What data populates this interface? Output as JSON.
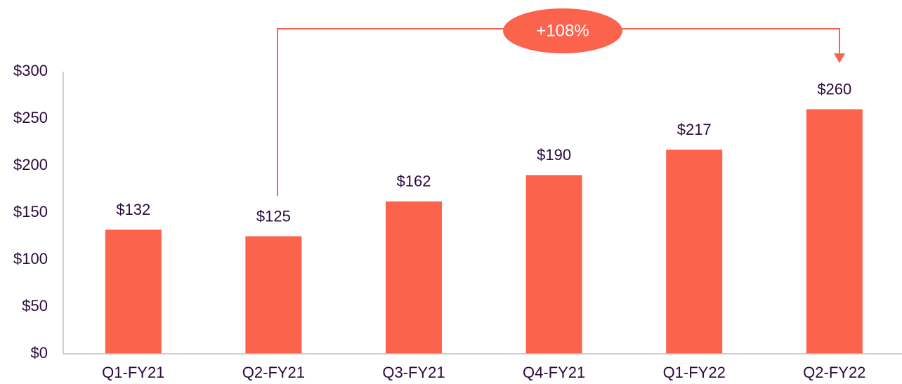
{
  "chart_data": {
    "type": "bar",
    "categories": [
      "Q1-FY21",
      "Q2-FY21",
      "Q3-FY21",
      "Q4-FY21",
      "Q1-FY22",
      "Q2-FY22"
    ],
    "values": [
      132,
      125,
      162,
      190,
      217,
      260
    ],
    "value_labels": [
      "$132",
      "$125",
      "$162",
      "$190",
      "$217",
      "$260"
    ],
    "color": "#fc634c",
    "ylim": [
      0,
      300
    ],
    "yticks": [
      {
        "value": 0,
        "label": "$0"
      },
      {
        "value": 50,
        "label": "$50"
      },
      {
        "value": 100,
        "label": "$100"
      },
      {
        "value": 150,
        "label": "$150"
      },
      {
        "value": 200,
        "label": "$200"
      },
      {
        "value": 250,
        "label": "$250"
      },
      {
        "value": 300,
        "label": "$300"
      }
    ],
    "grid": false,
    "annotation": "+108%"
  }
}
